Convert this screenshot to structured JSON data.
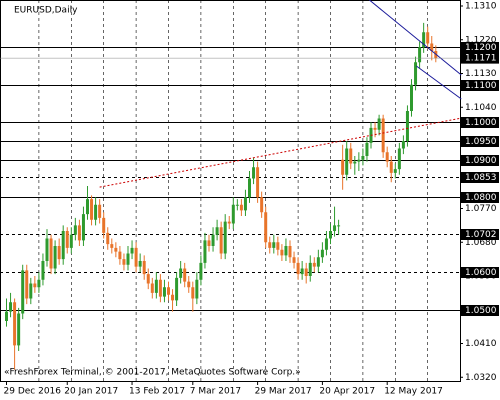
{
  "chart_data": {
    "type": "candlestick",
    "title": "EURUSD,Daily",
    "footer": "«FreshForex Terminal, © 2001-2017, MetaQuotes Software Corp.»",
    "up_color": "#2e9a2e",
    "down_color": "#e8742a",
    "ylim": [
      1.031,
      1.1326
    ],
    "yticks": [
      {
        "value": 1.131,
        "label": "1.1310"
      },
      {
        "value": 1.122,
        "label": "1.1220"
      },
      {
        "value": 1.113,
        "label": "1.1130"
      },
      {
        "value": 1.104,
        "label": "1.1040"
      },
      {
        "value": 1.077,
        "label": "1.0770"
      },
      {
        "value": 1.068,
        "label": "1.0680"
      },
      {
        "value": 1.059,
        "label": "1.0590"
      },
      {
        "value": 1.041,
        "label": "1.0410"
      },
      {
        "value": 1.032,
        "label": "1.0320"
      }
    ],
    "levels": [
      {
        "value": 1.12,
        "label": "1.1200",
        "style": "solid"
      },
      {
        "value": 1.11,
        "label": "1.1100",
        "style": "solid"
      },
      {
        "value": 1.1,
        "label": "1.1000",
        "style": "solid"
      },
      {
        "value": 1.095,
        "label": "1.0950",
        "style": "solid"
      },
      {
        "value": 1.09,
        "label": "1.0900",
        "style": "solid"
      },
      {
        "value": 1.0853,
        "label": "1.0853",
        "style": "dashed"
      },
      {
        "value": 1.08,
        "label": "1.0800",
        "style": "solid"
      },
      {
        "value": 1.0702,
        "label": "1.0702",
        "style": "dashed"
      },
      {
        "value": 1.06,
        "label": "1.0600",
        "style": "dashed"
      },
      {
        "value": 1.05,
        "label": "1.0500",
        "style": "solid"
      }
    ],
    "current_price": 1.1171,
    "xticks": [
      {
        "value": 0,
        "label": "29 Dec 2016"
      },
      {
        "value": 15,
        "label": "20 Jan 2017"
      },
      {
        "value": 31,
        "label": "13 Feb 2017"
      },
      {
        "value": 46,
        "label": "7 Mar 2017"
      },
      {
        "value": 62,
        "label": "29 Mar 2017"
      },
      {
        "value": 78,
        "label": "20 Apr 2017"
      },
      {
        "value": 94,
        "label": "12 May 2017"
      }
    ],
    "trendlines": [
      {
        "color": "#cc0000",
        "style": "dotted",
        "x": [
          23,
          112.3
        ],
        "y": [
          1.0827,
          1.1011
        ]
      },
      {
        "color": "#1a1a9a",
        "style": "solid",
        "x": [
          89.6,
          112.3
        ],
        "y": [
          1.1326,
          1.1126
        ]
      },
      {
        "color": "#1a1a9a",
        "style": "solid",
        "x": [
          101.2,
          112.3
        ],
        "y": [
          1.115,
          1.1062
        ]
      }
    ],
    "ohlc": [
      [
        1.047,
        1.053,
        1.0455,
        1.0495
      ],
      [
        1.0495,
        1.0545,
        1.048,
        1.052
      ],
      [
        1.052,
        1.053,
        1.034,
        1.0405
      ],
      [
        1.0405,
        1.0505,
        1.039,
        1.049
      ],
      [
        1.049,
        1.062,
        1.0475,
        1.0605
      ],
      [
        1.0605,
        1.062,
        1.0515,
        1.053
      ],
      [
        1.053,
        1.0585,
        1.0515,
        1.057
      ],
      [
        1.057,
        1.059,
        1.0545,
        1.056
      ],
      [
        1.056,
        1.06,
        1.0545,
        1.058
      ],
      [
        1.058,
        1.065,
        1.0565,
        1.063
      ],
      [
        1.063,
        1.0715,
        1.0615,
        1.069
      ],
      [
        1.069,
        1.07,
        1.0595,
        1.061
      ],
      [
        1.061,
        1.0685,
        1.0595,
        1.067
      ],
      [
        1.067,
        1.069,
        1.062,
        1.0635
      ],
      [
        1.0635,
        1.0725,
        1.062,
        1.071
      ],
      [
        1.071,
        1.072,
        1.065,
        1.0665
      ],
      [
        1.0665,
        1.072,
        1.065,
        1.07
      ],
      [
        1.07,
        1.0745,
        1.0685,
        1.0725
      ],
      [
        1.0725,
        1.074,
        1.067,
        1.0685
      ],
      [
        1.0685,
        1.0775,
        1.067,
        1.0755
      ],
      [
        1.0755,
        1.083,
        1.074,
        1.0795
      ],
      [
        1.0795,
        1.0805,
        1.0725,
        1.074
      ],
      [
        1.074,
        1.08,
        1.0725,
        1.078
      ],
      [
        1.078,
        1.0795,
        1.073,
        1.0745
      ],
      [
        1.0745,
        1.076,
        1.069,
        1.0705
      ],
      [
        1.0705,
        1.072,
        1.066,
        1.0675
      ],
      [
        1.0675,
        1.069,
        1.065,
        1.0665
      ],
      [
        1.0665,
        1.068,
        1.064,
        1.0655
      ],
      [
        1.0655,
        1.067,
        1.062,
        1.0635
      ],
      [
        1.0635,
        1.065,
        1.0605,
        1.062
      ],
      [
        1.062,
        1.067,
        1.0605,
        1.065
      ],
      [
        1.065,
        1.0685,
        1.0635,
        1.0665
      ],
      [
        1.0665,
        1.068,
        1.06,
        1.0615
      ],
      [
        1.0615,
        1.065,
        1.06,
        1.063
      ],
      [
        1.063,
        1.0645,
        1.058,
        1.0595
      ],
      [
        1.0595,
        1.061,
        1.0555,
        1.057
      ],
      [
        1.057,
        1.0585,
        1.053,
        1.0545
      ],
      [
        1.0545,
        1.06,
        1.053,
        1.058
      ],
      [
        1.058,
        1.0595,
        1.052,
        1.0535
      ],
      [
        1.0535,
        1.058,
        1.052,
        1.056
      ],
      [
        1.056,
        1.0575,
        1.0525,
        1.054
      ],
      [
        1.054,
        1.0555,
        1.0495,
        1.0525
      ],
      [
        1.0525,
        1.06,
        1.051,
        1.0585
      ],
      [
        1.0585,
        1.063,
        1.057,
        1.061
      ],
      [
        1.061,
        1.0625,
        1.056,
        1.0575
      ],
      [
        1.0575,
        1.059,
        1.0545,
        1.056
      ],
      [
        1.056,
        1.0575,
        1.0495,
        1.053
      ],
      [
        1.053,
        1.06,
        1.0515,
        1.058
      ],
      [
        1.058,
        1.0645,
        1.0565,
        1.0625
      ],
      [
        1.0625,
        1.0705,
        1.061,
        1.0685
      ],
      [
        1.0685,
        1.07,
        1.0655,
        1.067
      ],
      [
        1.067,
        1.072,
        1.0655,
        1.07
      ],
      [
        1.07,
        1.074,
        1.0685,
        1.072
      ],
      [
        1.072,
        1.0735,
        1.0635,
        1.065
      ],
      [
        1.065,
        1.0755,
        1.0635,
        1.0735
      ],
      [
        1.0735,
        1.075,
        1.0715,
        1.073
      ],
      [
        1.073,
        1.08,
        1.0715,
        1.078
      ],
      [
        1.078,
        1.0795,
        1.0765,
        1.078
      ],
      [
        1.078,
        1.0795,
        1.075,
        1.0765
      ],
      [
        1.0765,
        1.082,
        1.075,
        1.08
      ],
      [
        1.08,
        1.087,
        1.0785,
        1.085
      ],
      [
        1.085,
        1.0905,
        1.0835,
        1.088
      ],
      [
        1.088,
        1.0895,
        1.0785,
        1.08
      ],
      [
        1.08,
        1.0815,
        1.0745,
        1.076
      ],
      [
        1.076,
        1.0775,
        1.0665,
        1.068
      ],
      [
        1.068,
        1.0695,
        1.065,
        1.0665
      ],
      [
        1.0665,
        1.07,
        1.065,
        1.068
      ],
      [
        1.068,
        1.0695,
        1.0645,
        1.066
      ],
      [
        1.066,
        1.0675,
        1.063,
        1.0645
      ],
      [
        1.0645,
        1.069,
        1.063,
        1.067
      ],
      [
        1.067,
        1.0685,
        1.0625,
        1.064
      ],
      [
        1.064,
        1.0655,
        1.061,
        1.0625
      ],
      [
        1.0625,
        1.064,
        1.058,
        1.0595
      ],
      [
        1.0595,
        1.063,
        1.058,
        1.061
      ],
      [
        1.061,
        1.0625,
        1.057,
        1.059
      ],
      [
        1.059,
        1.0645,
        1.0575,
        1.0625
      ],
      [
        1.0625,
        1.064,
        1.06,
        1.0615
      ],
      [
        1.0615,
        1.066,
        1.06,
        1.064
      ],
      [
        1.064,
        1.068,
        1.0625,
        1.066
      ],
      [
        1.066,
        1.071,
        1.0645,
        1.069
      ],
      [
        1.069,
        1.073,
        1.0675,
        1.071
      ],
      [
        1.071,
        1.0775,
        1.0695,
        1.0725
      ],
      [
        1.0725,
        1.074,
        1.07,
        1.0725
      ],
      [
        1.09,
        1.094,
        1.082,
        1.086
      ],
      [
        1.086,
        1.095,
        1.0845,
        1.093
      ],
      [
        1.093,
        1.0945,
        1.0875,
        1.089
      ],
      [
        1.089,
        1.091,
        1.086,
        1.0895
      ],
      [
        1.0895,
        1.092,
        1.087,
        1.09
      ],
      [
        1.09,
        1.093,
        1.0885,
        1.091
      ],
      [
        1.091,
        1.096,
        1.0895,
        1.0945
      ],
      [
        1.0945,
        1.1,
        1.093,
        1.0985
      ],
      [
        1.0985,
        1.1,
        1.096,
        1.098
      ],
      [
        1.098,
        1.102,
        1.0965,
        1.101
      ],
      [
        1.101,
        1.102,
        1.0905,
        1.092
      ],
      [
        1.092,
        1.0935,
        1.088,
        1.0895
      ],
      [
        1.0895,
        1.091,
        1.084,
        1.0865
      ],
      [
        1.0865,
        1.089,
        1.085,
        1.0875
      ],
      [
        1.0875,
        1.0945,
        1.086,
        1.093
      ],
      [
        1.093,
        1.0965,
        1.0915,
        1.095
      ],
      [
        1.095,
        1.1045,
        1.0935,
        1.103
      ],
      [
        1.103,
        1.1115,
        1.1015,
        1.11
      ],
      [
        1.11,
        1.1175,
        1.1085,
        1.116
      ],
      [
        1.116,
        1.1215,
        1.1145,
        1.12
      ],
      [
        1.12,
        1.1265,
        1.1185,
        1.124
      ],
      [
        1.124,
        1.1255,
        1.1195,
        1.121
      ],
      [
        1.121,
        1.123,
        1.1165,
        1.119
      ],
      [
        1.119,
        1.1205,
        1.116,
        1.1171
      ]
    ]
  }
}
